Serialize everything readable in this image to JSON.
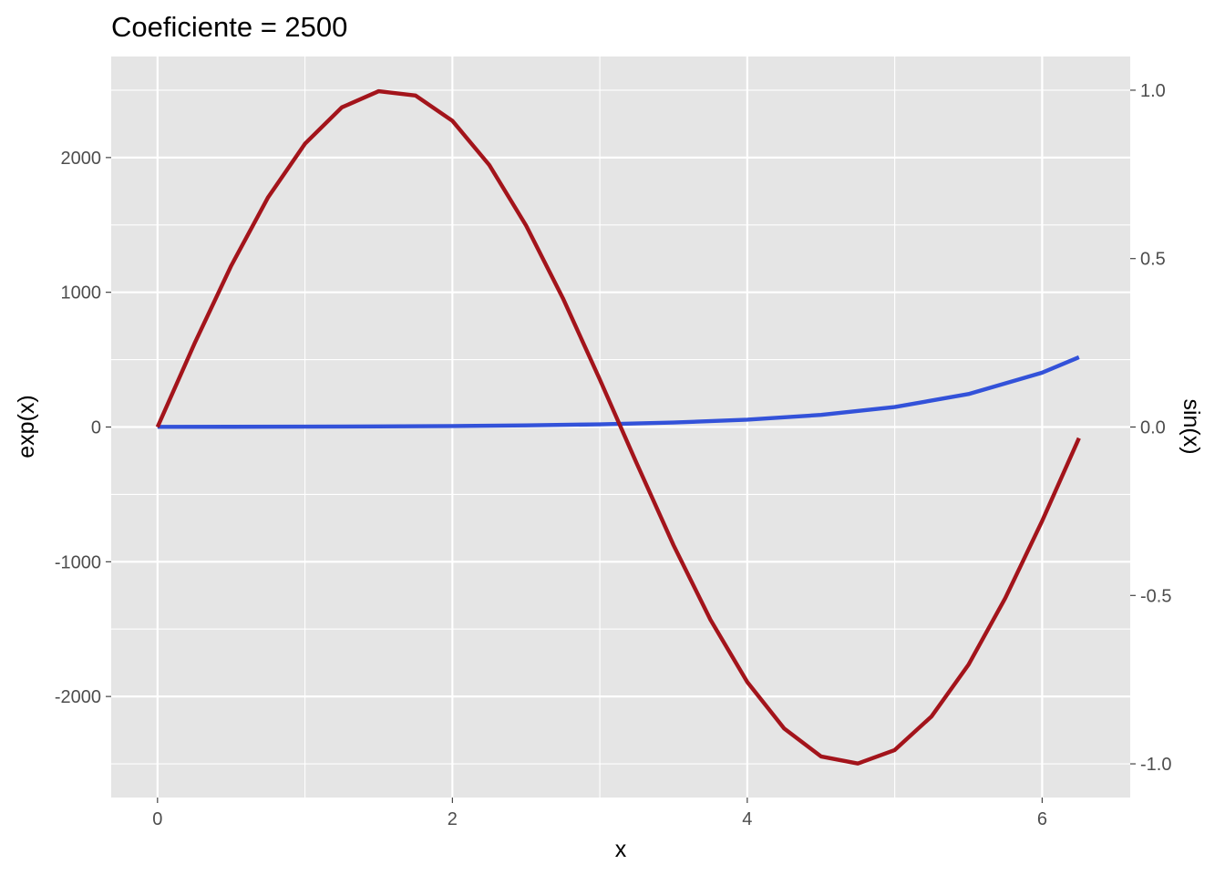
{
  "chart_data": {
    "type": "line",
    "title": "Coeficiente =  2500",
    "xlabel": "x",
    "ylabel_left": "exp(x)",
    "ylabel_right": "sin(x)",
    "xlim": [
      -0.3142,
      6.5973
    ],
    "ylim_left": [
      -2750,
      2750
    ],
    "ylim_right": [
      -1.1,
      1.1
    ],
    "coefficient": 2500,
    "x_ticks": [
      0,
      2,
      4,
      6
    ],
    "x_tick_labels": [
      "0",
      "2",
      "4",
      "6"
    ],
    "y_left_ticks": [
      -2000,
      -1000,
      0,
      1000,
      2000
    ],
    "y_left_tick_labels": [
      "-2000",
      "-1000",
      "0",
      "1000",
      "2000"
    ],
    "y_right_ticks": [
      -1.0,
      -0.5,
      0.0,
      0.5,
      1.0
    ],
    "y_right_tick_labels": [
      "-1.0",
      "-0.5",
      "0.0",
      "0.5",
      "1.0"
    ],
    "grid": true,
    "series": [
      {
        "axis": "left",
        "color": "#3352d9",
        "x": [
          0.0,
          0.5,
          1.0,
          1.5,
          2.0,
          2.5,
          3.0,
          3.5,
          4.0,
          4.5,
          5.0,
          5.5,
          6.0,
          6.25
        ],
        "values": [
          1.0,
          1.6,
          2.7,
          4.5,
          7.4,
          12.2,
          20.1,
          33.1,
          54.6,
          90.0,
          148.4,
          244.7,
          403.4,
          518.0
        ]
      },
      {
        "axis": "right",
        "color": "#a3141b",
        "x": [
          0.0,
          0.25,
          0.5,
          0.75,
          1.0,
          1.25,
          1.5,
          1.75,
          2.0,
          2.25,
          2.5,
          2.75,
          3.0,
          3.25,
          3.5,
          3.75,
          4.0,
          4.25,
          4.5,
          4.75,
          5.0,
          5.25,
          5.5,
          5.75,
          6.0,
          6.25
        ],
        "values": [
          0.0,
          0.247,
          0.479,
          0.682,
          0.841,
          0.949,
          0.997,
          0.984,
          0.909,
          0.778,
          0.598,
          0.382,
          0.141,
          -0.108,
          -0.351,
          -0.572,
          -0.757,
          -0.895,
          -0.978,
          -0.999,
          -0.959,
          -0.859,
          -0.706,
          -0.508,
          -0.279,
          -0.033
        ]
      }
    ]
  },
  "colors": {
    "panel_background": "#e5e5e5",
    "grid": "#ffffff",
    "tick": "#333333",
    "tick_text": "#4d4d4d"
  }
}
